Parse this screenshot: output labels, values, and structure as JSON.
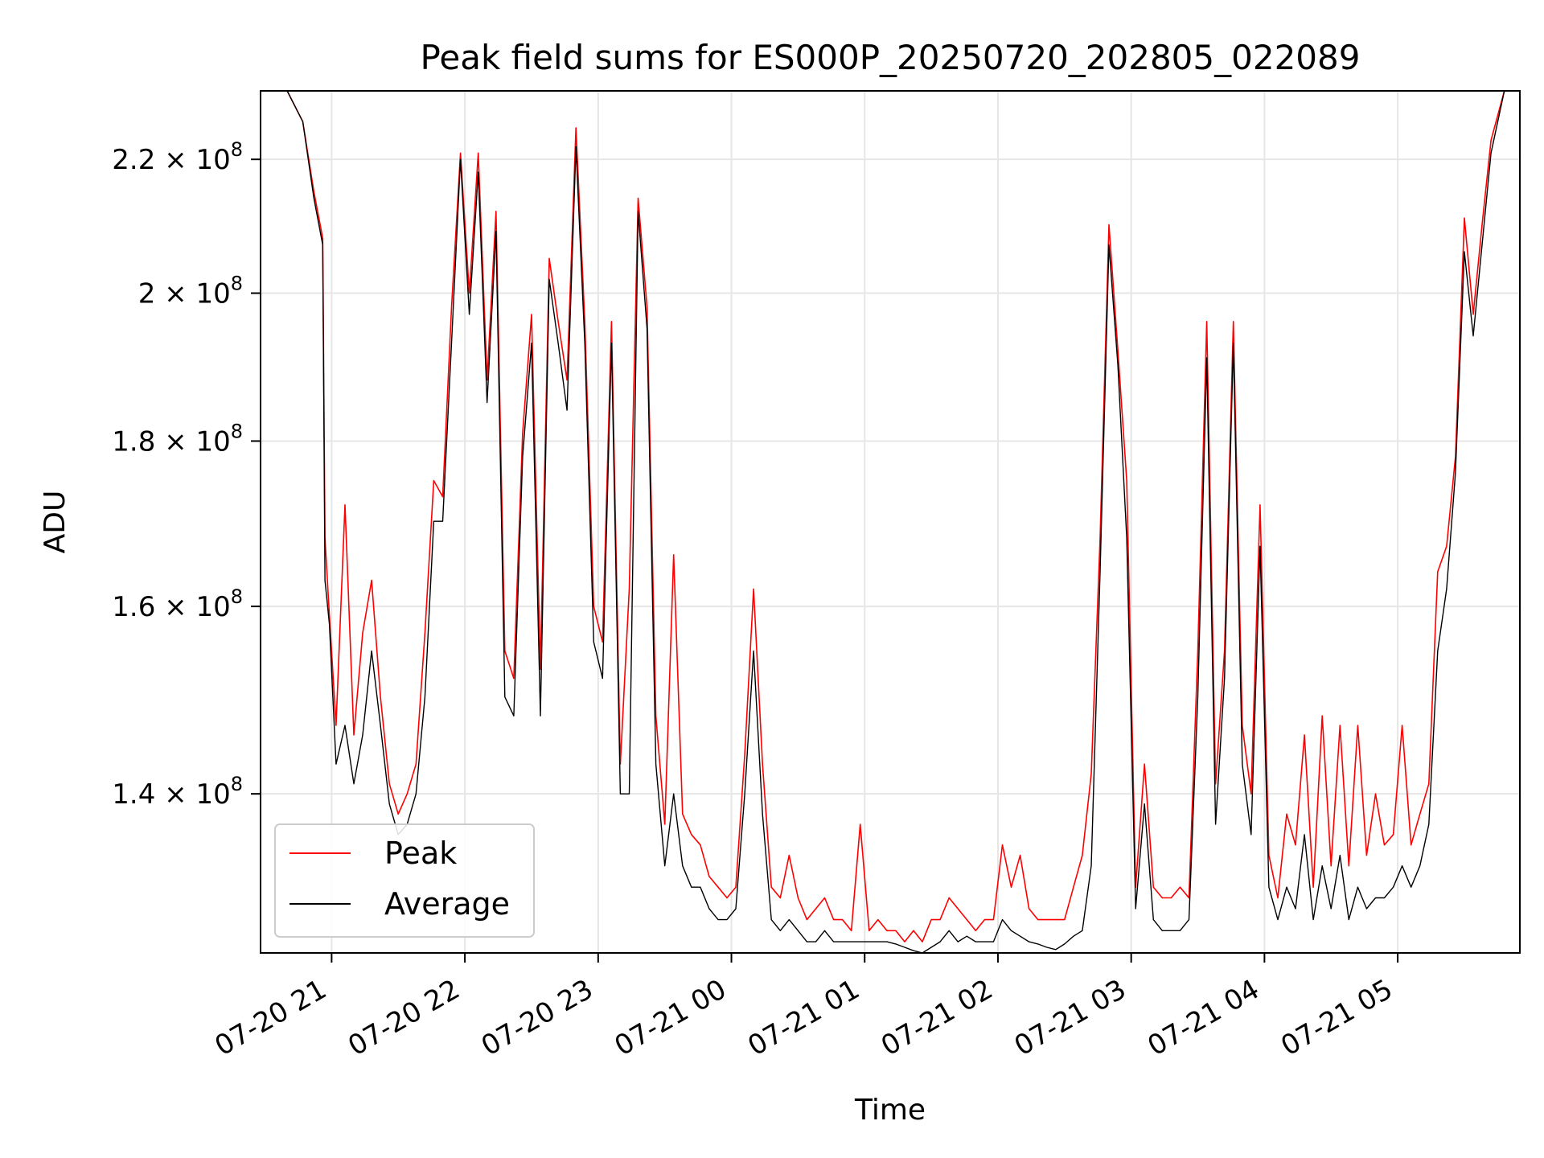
{
  "chart_data": {
    "type": "line",
    "title": "Peak field sums for ES000P_20250720_202805_022089",
    "xlabel": "Time",
    "ylabel": "ADU",
    "y_scale": "log",
    "xlim": [
      "2025-07-20 20:28",
      "2025-07-21 05:55"
    ],
    "ylim": [
      125000000,
      231000000
    ],
    "x_ticks": [
      "07-20 21",
      "07-20 22",
      "07-20 23",
      "07-21 00",
      "07-21 01",
      "07-21 02",
      "07-21 03",
      "07-21 04",
      "07-21 05"
    ],
    "x_tick_times": [
      "2025-07-20 21:00",
      "2025-07-20 22:00",
      "2025-07-20 23:00",
      "2025-07-21 00:00",
      "2025-07-21 01:00",
      "2025-07-21 02:00",
      "2025-07-21 03:00",
      "2025-07-21 04:00",
      "2025-07-21 05:00"
    ],
    "y_ticks": [
      {
        "value": 140000000,
        "mantissa": "1.4",
        "exp": "8"
      },
      {
        "value": 160000000,
        "mantissa": "1.6",
        "exp": "8"
      },
      {
        "value": 180000000,
        "mantissa": "1.8",
        "exp": "8"
      },
      {
        "value": 200000000,
        "mantissa": "2",
        "exp": "8"
      },
      {
        "value": 220000000,
        "mantissa": "2.2",
        "exp": "8"
      }
    ],
    "grid": true,
    "legend_position": "lower-left",
    "series": [
      {
        "name": "Peak",
        "color": "#ff0000",
        "x": [
          "2025-07-20 20:28",
          "2025-07-20 20:40",
          "2025-07-20 20:47",
          "2025-07-20 20:52",
          "2025-07-20 20:56",
          "2025-07-20 20:57",
          "2025-07-20 20:59",
          "2025-07-20 21:02",
          "2025-07-20 21:06",
          "2025-07-20 21:10",
          "2025-07-20 21:14",
          "2025-07-20 21:18",
          "2025-07-20 21:22",
          "2025-07-20 21:26",
          "2025-07-20 21:30",
          "2025-07-20 21:34",
          "2025-07-20 21:38",
          "2025-07-20 21:42",
          "2025-07-20 21:46",
          "2025-07-20 21:50",
          "2025-07-20 21:54",
          "2025-07-20 21:58",
          "2025-07-20 22:02",
          "2025-07-20 22:06",
          "2025-07-20 22:10",
          "2025-07-20 22:14",
          "2025-07-20 22:18",
          "2025-07-20 22:22",
          "2025-07-20 22:26",
          "2025-07-20 22:30",
          "2025-07-20 22:34",
          "2025-07-20 22:38",
          "2025-07-20 22:42",
          "2025-07-20 22:46",
          "2025-07-20 22:50",
          "2025-07-20 22:54",
          "2025-07-20 22:58",
          "2025-07-20 23:02",
          "2025-07-20 23:06",
          "2025-07-20 23:10",
          "2025-07-20 23:14",
          "2025-07-20 23:18",
          "2025-07-20 23:22",
          "2025-07-20 23:26",
          "2025-07-20 23:30",
          "2025-07-20 23:34",
          "2025-07-20 23:38",
          "2025-07-20 23:42",
          "2025-07-20 23:46",
          "2025-07-20 23:50",
          "2025-07-20 23:54",
          "2025-07-20 23:58",
          "2025-07-21 00:02",
          "2025-07-21 00:06",
          "2025-07-21 00:10",
          "2025-07-21 00:14",
          "2025-07-21 00:18",
          "2025-07-21 00:22",
          "2025-07-21 00:26",
          "2025-07-21 00:30",
          "2025-07-21 00:34",
          "2025-07-21 00:38",
          "2025-07-21 00:42",
          "2025-07-21 00:46",
          "2025-07-21 00:50",
          "2025-07-21 00:54",
          "2025-07-21 00:58",
          "2025-07-21 01:02",
          "2025-07-21 01:06",
          "2025-07-21 01:10",
          "2025-07-21 01:14",
          "2025-07-21 01:18",
          "2025-07-21 01:22",
          "2025-07-21 01:26",
          "2025-07-21 01:30",
          "2025-07-21 01:34",
          "2025-07-21 01:38",
          "2025-07-21 01:42",
          "2025-07-21 01:46",
          "2025-07-21 01:50",
          "2025-07-21 01:54",
          "2025-07-21 01:58",
          "2025-07-21 02:02",
          "2025-07-21 02:06",
          "2025-07-21 02:10",
          "2025-07-21 02:14",
          "2025-07-21 02:18",
          "2025-07-21 02:22",
          "2025-07-21 02:26",
          "2025-07-21 02:30",
          "2025-07-21 02:34",
          "2025-07-21 02:38",
          "2025-07-21 02:42",
          "2025-07-21 02:46",
          "2025-07-21 02:50",
          "2025-07-21 02:54",
          "2025-07-21 02:58",
          "2025-07-21 03:02",
          "2025-07-21 03:06",
          "2025-07-21 03:10",
          "2025-07-21 03:14",
          "2025-07-21 03:18",
          "2025-07-21 03:22",
          "2025-07-21 03:26",
          "2025-07-21 03:30",
          "2025-07-21 03:34",
          "2025-07-21 03:38",
          "2025-07-21 03:42",
          "2025-07-21 03:46",
          "2025-07-21 03:50",
          "2025-07-21 03:54",
          "2025-07-21 03:58",
          "2025-07-21 04:02",
          "2025-07-21 04:06",
          "2025-07-21 04:10",
          "2025-07-21 04:14",
          "2025-07-21 04:18",
          "2025-07-21 04:22",
          "2025-07-21 04:26",
          "2025-07-21 04:30",
          "2025-07-21 04:34",
          "2025-07-21 04:38",
          "2025-07-21 04:42",
          "2025-07-21 04:46",
          "2025-07-21 04:50",
          "2025-07-21 04:54",
          "2025-07-21 04:58",
          "2025-07-21 05:02",
          "2025-07-21 05:06",
          "2025-07-21 05:10",
          "2025-07-21 05:14",
          "2025-07-21 05:18",
          "2025-07-21 05:22",
          "2025-07-21 05:26",
          "2025-07-21 05:30",
          "2025-07-21 05:34",
          "2025-07-21 05:38",
          "2025-07-21 05:42",
          "2025-07-21 05:48",
          "2025-07-21 05:55"
        ],
        "values": [
          231000000,
          231000000,
          226000000,
          215000000,
          208000000,
          168000000,
          159000000,
          147000000,
          172000000,
          146000000,
          157000000,
          163000000,
          150000000,
          141000000,
          138000000,
          140000000,
          143000000,
          157000000,
          175000000,
          173000000,
          198000000,
          221000000,
          200000000,
          221000000,
          188000000,
          212000000,
          155000000,
          152000000,
          181000000,
          197000000,
          153000000,
          205000000,
          196000000,
          188000000,
          225000000,
          196000000,
          160000000,
          156000000,
          196000000,
          143000000,
          162000000,
          214000000,
          198000000,
          148000000,
          137000000,
          166000000,
          138000000,
          136000000,
          135000000,
          132000000,
          131000000,
          130000000,
          131000000,
          144000000,
          162000000,
          143000000,
          131000000,
          130000000,
          134000000,
          130000000,
          128000000,
          129000000,
          130000000,
          128000000,
          128000000,
          127000000,
          137000000,
          127000000,
          128000000,
          127000000,
          127000000,
          126000000,
          127000000,
          126000000,
          128000000,
          128000000,
          130000000,
          129000000,
          128000000,
          127000000,
          128000000,
          128000000,
          135000000,
          131000000,
          134000000,
          129000000,
          128000000,
          128000000,
          128000000,
          128000000,
          131000000,
          134000000,
          142000000,
          168000000,
          210000000,
          192000000,
          175000000,
          131000000,
          143000000,
          131000000,
          130000000,
          130000000,
          131000000,
          130000000,
          155000000,
          196000000,
          141000000,
          155000000,
          196000000,
          147000000,
          140000000,
          172000000,
          134000000,
          130000000,
          138000000,
          135000000,
          146000000,
          131000000,
          148000000,
          133000000,
          147000000,
          133000000,
          147000000,
          134000000,
          140000000,
          135000000,
          136000000,
          147000000,
          135000000,
          138000000,
          141000000,
          164000000,
          167000000,
          178000000,
          211000000,
          197000000,
          210000000,
          223000000,
          231000000,
          231000000
        ]
      },
      {
        "name": "Average",
        "color": "#000000",
        "x": [
          "2025-07-20 20:28",
          "2025-07-20 20:40",
          "2025-07-20 20:47",
          "2025-07-20 20:52",
          "2025-07-20 20:56",
          "2025-07-20 20:57",
          "2025-07-20 20:59",
          "2025-07-20 21:02",
          "2025-07-20 21:06",
          "2025-07-20 21:10",
          "2025-07-20 21:14",
          "2025-07-20 21:18",
          "2025-07-20 21:22",
          "2025-07-20 21:26",
          "2025-07-20 21:30",
          "2025-07-20 21:34",
          "2025-07-20 21:38",
          "2025-07-20 21:42",
          "2025-07-20 21:46",
          "2025-07-20 21:50",
          "2025-07-20 21:54",
          "2025-07-20 21:58",
          "2025-07-20 22:02",
          "2025-07-20 22:06",
          "2025-07-20 22:10",
          "2025-07-20 22:14",
          "2025-07-20 22:18",
          "2025-07-20 22:22",
          "2025-07-20 22:26",
          "2025-07-20 22:30",
          "2025-07-20 22:34",
          "2025-07-20 22:38",
          "2025-07-20 22:42",
          "2025-07-20 22:46",
          "2025-07-20 22:50",
          "2025-07-20 22:54",
          "2025-07-20 22:58",
          "2025-07-20 23:02",
          "2025-07-20 23:06",
          "2025-07-20 23:10",
          "2025-07-20 23:14",
          "2025-07-20 23:18",
          "2025-07-20 23:22",
          "2025-07-20 23:26",
          "2025-07-20 23:30",
          "2025-07-20 23:34",
          "2025-07-20 23:38",
          "2025-07-20 23:42",
          "2025-07-20 23:46",
          "2025-07-20 23:50",
          "2025-07-20 23:54",
          "2025-07-20 23:58",
          "2025-07-21 00:02",
          "2025-07-21 00:06",
          "2025-07-21 00:10",
          "2025-07-21 00:14",
          "2025-07-21 00:18",
          "2025-07-21 00:22",
          "2025-07-21 00:26",
          "2025-07-21 00:30",
          "2025-07-21 00:34",
          "2025-07-21 00:38",
          "2025-07-21 00:42",
          "2025-07-21 00:46",
          "2025-07-21 00:50",
          "2025-07-21 00:54",
          "2025-07-21 00:58",
          "2025-07-21 01:02",
          "2025-07-21 01:06",
          "2025-07-21 01:10",
          "2025-07-21 01:14",
          "2025-07-21 01:18",
          "2025-07-21 01:22",
          "2025-07-21 01:26",
          "2025-07-21 01:30",
          "2025-07-21 01:34",
          "2025-07-21 01:38",
          "2025-07-21 01:42",
          "2025-07-21 01:46",
          "2025-07-21 01:50",
          "2025-07-21 01:54",
          "2025-07-21 01:58",
          "2025-07-21 02:02",
          "2025-07-21 02:06",
          "2025-07-21 02:10",
          "2025-07-21 02:14",
          "2025-07-21 02:18",
          "2025-07-21 02:22",
          "2025-07-21 02:26",
          "2025-07-21 02:30",
          "2025-07-21 02:34",
          "2025-07-21 02:38",
          "2025-07-21 02:42",
          "2025-07-21 02:46",
          "2025-07-21 02:50",
          "2025-07-21 02:54",
          "2025-07-21 02:58",
          "2025-07-21 03:02",
          "2025-07-21 03:06",
          "2025-07-21 03:10",
          "2025-07-21 03:14",
          "2025-07-21 03:18",
          "2025-07-21 03:22",
          "2025-07-21 03:26",
          "2025-07-21 03:30",
          "2025-07-21 03:34",
          "2025-07-21 03:38",
          "2025-07-21 03:42",
          "2025-07-21 03:46",
          "2025-07-21 03:50",
          "2025-07-21 03:54",
          "2025-07-21 03:58",
          "2025-07-21 04:02",
          "2025-07-21 04:06",
          "2025-07-21 04:10",
          "2025-07-21 04:14",
          "2025-07-21 04:18",
          "2025-07-21 04:22",
          "2025-07-21 04:26",
          "2025-07-21 04:30",
          "2025-07-21 04:34",
          "2025-07-21 04:38",
          "2025-07-21 04:42",
          "2025-07-21 04:46",
          "2025-07-21 04:50",
          "2025-07-21 04:54",
          "2025-07-21 04:58",
          "2025-07-21 05:02",
          "2025-07-21 05:06",
          "2025-07-21 05:10",
          "2025-07-21 05:14",
          "2025-07-21 05:18",
          "2025-07-21 05:22",
          "2025-07-21 05:26",
          "2025-07-21 05:30",
          "2025-07-21 05:34",
          "2025-07-21 05:38",
          "2025-07-21 05:42",
          "2025-07-21 05:48",
          "2025-07-21 05:55"
        ],
        "values": [
          231000000,
          231000000,
          226000000,
          214000000,
          207000000,
          163000000,
          158000000,
          143000000,
          147000000,
          141000000,
          146000000,
          155000000,
          147000000,
          139000000,
          136000000,
          137000000,
          140000000,
          150000000,
          170000000,
          170000000,
          193000000,
          220000000,
          197000000,
          218000000,
          185000000,
          209000000,
          150000000,
          148000000,
          178000000,
          193000000,
          148000000,
          202000000,
          193000000,
          184000000,
          222000000,
          193000000,
          156000000,
          152000000,
          193000000,
          140000000,
          140000000,
          212000000,
          195000000,
          143000000,
          133000000,
          140000000,
          133000000,
          131000000,
          131000000,
          129000000,
          128000000,
          128000000,
          129000000,
          140000000,
          155000000,
          138000000,
          128000000,
          127000000,
          128000000,
          127000000,
          126000000,
          126000000,
          127000000,
          126000000,
          126000000,
          126000000,
          126000000,
          126000000,
          126000000,
          126000000,
          125800000,
          125500000,
          125200000,
          125000000,
          125500000,
          126000000,
          127000000,
          126000000,
          126500000,
          126000000,
          126000000,
          126000000,
          128000000,
          127000000,
          126500000,
          126000000,
          125800000,
          125500000,
          125300000,
          125800000,
          126500000,
          127000000,
          133000000,
          164000000,
          207000000,
          190000000,
          168000000,
          129000000,
          139000000,
          128000000,
          127000000,
          127000000,
          127000000,
          128000000,
          150000000,
          191000000,
          137000000,
          152000000,
          193000000,
          143000000,
          136000000,
          167000000,
          131000000,
          128000000,
          131000000,
          129000000,
          136000000,
          128000000,
          133000000,
          129000000,
          134000000,
          128000000,
          131000000,
          129000000,
          130000000,
          130000000,
          131000000,
          133000000,
          131000000,
          133000000,
          137000000,
          155000000,
          162000000,
          176000000,
          206000000,
          194000000,
          207000000,
          221000000,
          231000000,
          231000000
        ]
      }
    ]
  }
}
